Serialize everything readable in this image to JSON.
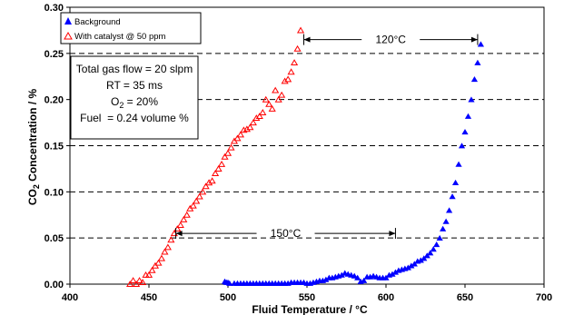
{
  "chart_data": {
    "type": "scatter",
    "title": "",
    "xlabel": "Fluid Temperature / °C",
    "ylabel_parts": [
      "CO",
      "2",
      " Concentration / %"
    ],
    "xlim": [
      400,
      700
    ],
    "ylim": [
      0,
      0.3
    ],
    "x_ticks": [
      400,
      450,
      500,
      550,
      600,
      650,
      700
    ],
    "x_tick_labels": [
      "400",
      "450",
      "500",
      "550",
      "600",
      "650",
      "700"
    ],
    "y_ticks": [
      0,
      0.05,
      0.1,
      0.15,
      0.2,
      0.25,
      0.3
    ],
    "y_tick_labels": [
      "0.00",
      "0.05",
      "0.10",
      "0.15",
      "0.20",
      "0.25",
      "0.30"
    ],
    "grid": "horizontal dashed",
    "legend_position": "top-left",
    "series": [
      {
        "name": "Background",
        "marker": "filled-triangle",
        "color": "#0000ff",
        "x": [
          498,
          499,
          500,
          501,
          504,
          506,
          508,
          510,
          512,
          514,
          516,
          518,
          520,
          522,
          524,
          526,
          528,
          530,
          532,
          534,
          536,
          538,
          540,
          542,
          544,
          546,
          548,
          550,
          552,
          554,
          556,
          558,
          560,
          562,
          564,
          566,
          568,
          570,
          572,
          574,
          576,
          578,
          580,
          582,
          584,
          586,
          588,
          590,
          592,
          594,
          596,
          598,
          600,
          602,
          604,
          606,
          608,
          610,
          612,
          614,
          616,
          618,
          620,
          622,
          624,
          626,
          628,
          630,
          632,
          634,
          636,
          638,
          640,
          642,
          644,
          646,
          648,
          650,
          652,
          654,
          656,
          658,
          660
        ],
        "y": [
          0.003,
          0.002,
          0.002,
          0.001,
          0.001,
          0.001,
          0.001,
          0.001,
          0.001,
          0.001,
          0.001,
          0.001,
          0.001,
          0.001,
          0.001,
          0.001,
          0.001,
          0.001,
          0.001,
          0.001,
          0.001,
          0.001,
          0.002,
          0.002,
          0.002,
          0.002,
          0.002,
          0.001,
          0.001,
          0.002,
          0.003,
          0.004,
          0.004,
          0.005,
          0.007,
          0.007,
          0.008,
          0.009,
          0.01,
          0.012,
          0.011,
          0.01,
          0.009,
          0.007,
          0.003,
          0.004,
          0.008,
          0.008,
          0.009,
          0.008,
          0.007,
          0.007,
          0.007,
          0.01,
          0.011,
          0.013,
          0.015,
          0.016,
          0.017,
          0.018,
          0.02,
          0.022,
          0.025,
          0.026,
          0.028,
          0.031,
          0.034,
          0.038,
          0.043,
          0.05,
          0.06,
          0.068,
          0.08,
          0.095,
          0.11,
          0.13,
          0.15,
          0.165,
          0.182,
          0.2,
          0.222,
          0.24,
          0.26
        ]
      },
      {
        "name": "With catalyst @ 50 ppm",
        "marker": "open-triangle",
        "color": "#ff0000",
        "x": [
          438,
          440,
          442,
          444,
          446,
          448,
          450,
          452,
          454,
          456,
          458,
          460,
          462,
          464,
          466,
          468,
          470,
          472,
          474,
          476,
          478,
          480,
          482,
          484,
          486,
          488,
          490,
          492,
          494,
          496,
          498,
          500,
          502,
          504,
          506,
          508,
          510,
          512,
          514,
          516,
          518,
          520,
          522,
          524,
          526,
          528,
          530,
          532,
          534,
          536,
          538,
          540,
          542,
          544,
          546
        ],
        "y": [
          0.0,
          0.004,
          0.0,
          0.004,
          0.002,
          0.01,
          0.01,
          0.015,
          0.02,
          0.023,
          0.028,
          0.035,
          0.04,
          0.048,
          0.055,
          0.06,
          0.064,
          0.07,
          0.075,
          0.082,
          0.085,
          0.09,
          0.095,
          0.1,
          0.106,
          0.11,
          0.112,
          0.12,
          0.125,
          0.13,
          0.138,
          0.142,
          0.148,
          0.155,
          0.158,
          0.162,
          0.167,
          0.168,
          0.17,
          0.175,
          0.18,
          0.182,
          0.186,
          0.2,
          0.195,
          0.19,
          0.21,
          0.2,
          0.205,
          0.22,
          0.222,
          0.23,
          0.24,
          0.255,
          0.275
        ]
      }
    ],
    "annotations": [
      {
        "text": "120°C",
        "from": 548,
        "to": 658,
        "y": 0.265
      },
      {
        "text": "150°C",
        "from": 467,
        "to": 606,
        "y": 0.055
      }
    ],
    "text_box": [
      "Total gas flow = 20 slpm",
      "RT = 35 ms",
      "O2 = 20%",
      "Fuel  = 0.24 volume %"
    ],
    "text_box_o2": [
      "O",
      "2",
      " = 20%"
    ]
  },
  "colors": {
    "background_series": "#0000ff",
    "catalyst_series": "#ff0000",
    "axis": "#000000"
  }
}
